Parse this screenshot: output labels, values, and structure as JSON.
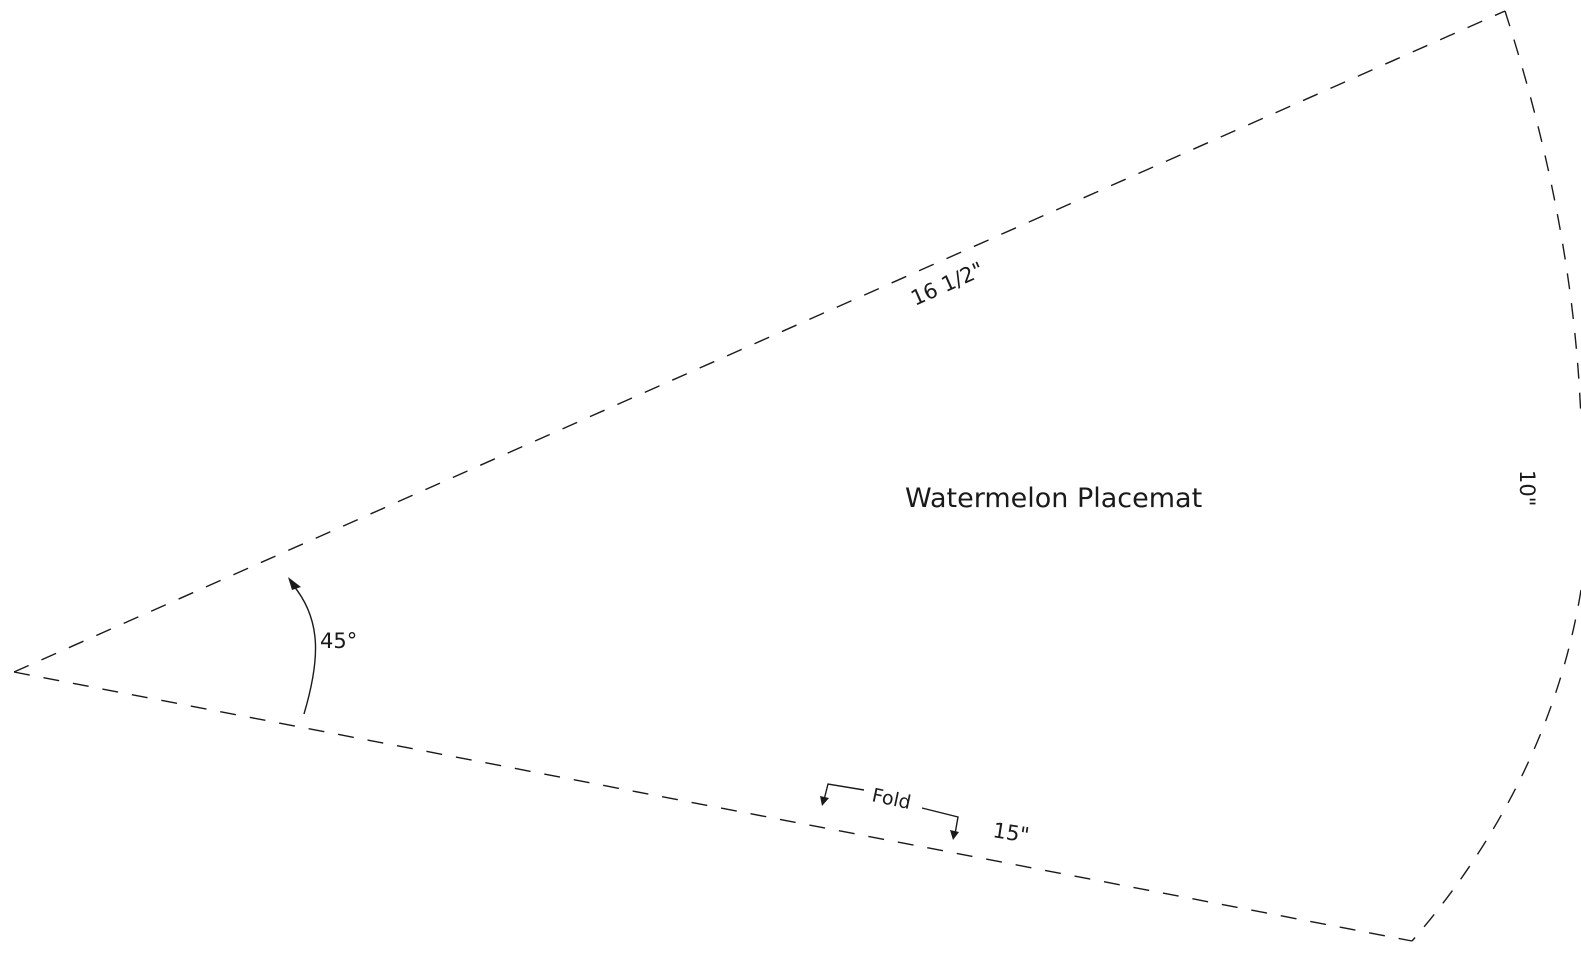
{
  "pattern": {
    "title": "Watermelon Placemat",
    "top_edge_label": "16 1/2\"",
    "bottom_edge_label": "15\"",
    "right_edge_label": "10\"",
    "angle_label": "45°",
    "fold_label": "Fold"
  }
}
